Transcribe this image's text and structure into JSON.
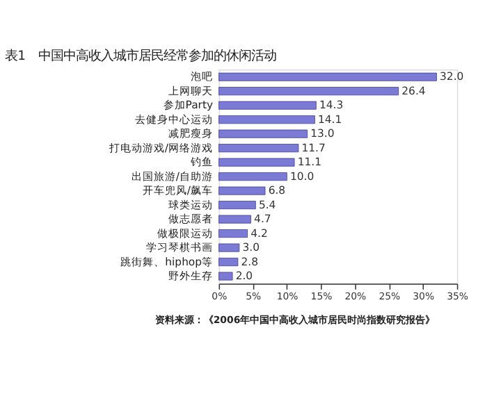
{
  "chart_data": {
    "type": "bar",
    "orientation": "horizontal",
    "title": "表1　中国中高收入城市居民经常参加的休闲活动",
    "categories": [
      "泡吧",
      "上网聊天",
      "参加Party",
      "去健身中心运动",
      "减肥瘦身",
      "打电动游戏/网络游戏",
      "钓鱼",
      "出国旅游/自助游",
      "开车兜风/飙车",
      "球类运动",
      "做志愿者",
      "做极限运动",
      "学习琴棋书画",
      "跳街舞、hiphop等",
      "野外生存"
    ],
    "values": [
      32.0,
      26.4,
      14.3,
      14.1,
      13.0,
      11.7,
      11.1,
      10.0,
      6.8,
      5.4,
      4.7,
      4.2,
      3.0,
      2.8,
      2.0
    ],
    "value_labels": [
      "32.0",
      "26.4",
      "14.3",
      "14.1",
      "13.0",
      "11.7",
      "11.1",
      "10.0",
      "6.8",
      "5.4",
      "4.7",
      "4.2",
      "3.0",
      "2.8",
      "2.0"
    ],
    "color": "#7b7bd6",
    "xlim": [
      0,
      35
    ],
    "xticks": [
      {
        "value": 0,
        "label": "0%"
      },
      {
        "value": 5,
        "label": "5%"
      },
      {
        "value": 10,
        "label": "10%"
      },
      {
        "value": 15,
        "label": "15%"
      },
      {
        "value": 20,
        "label": "20%"
      },
      {
        "value": 25,
        "label": "25%"
      },
      {
        "value": 30,
        "label": "30%"
      },
      {
        "value": 35,
        "label": "35%"
      }
    ],
    "grid": false,
    "annotations": [
      "资料来源：《2006年中国中高收入城市居民时尚指数研究报告》"
    ]
  }
}
